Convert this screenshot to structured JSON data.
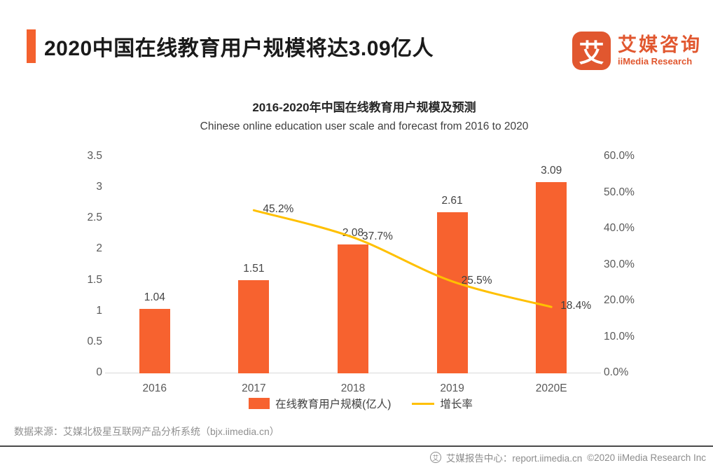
{
  "header": {
    "title": "2020中国在线教育用户规模将达3.09亿人",
    "accent_color": "#F4612E",
    "logo": {
      "glyph": "艾",
      "name_cn": "艾媒咨询",
      "name_en": "iiMedia Research",
      "color": "#E1572F"
    }
  },
  "chart_data": {
    "type": "bar",
    "title": "2016-2020年中国在线教育用户规模及预测",
    "subtitle": "Chinese online education user scale and forecast from 2016 to 2020",
    "categories": [
      "2016",
      "2017",
      "2018",
      "2019",
      "2020E"
    ],
    "series": [
      {
        "name": "在线教育用户规模(亿人)",
        "type": "bar",
        "axis": "left",
        "color": "#F7622F",
        "values": [
          1.04,
          1.51,
          2.08,
          2.61,
          3.09
        ],
        "value_labels": [
          "1.04",
          "1.51",
          "2.08",
          "2.61",
          "3.09"
        ]
      },
      {
        "name": "增长率",
        "type": "line",
        "axis": "right",
        "color": "#FFC000",
        "values": [
          null,
          45.2,
          37.7,
          25.5,
          18.4
        ],
        "value_labels": [
          "",
          "45.2%",
          "37.7%",
          "25.5%",
          "18.4%"
        ]
      }
    ],
    "left_axis": {
      "min": 0,
      "max": 3.5,
      "step": 0.5,
      "ticks": [
        "0",
        "0.5",
        "1",
        "1.5",
        "2",
        "2.5",
        "3",
        "3.5"
      ]
    },
    "right_axis": {
      "min": 0,
      "max": 60,
      "step": 10,
      "ticks": [
        "0.0%",
        "10.0%",
        "20.0%",
        "30.0%",
        "40.0%",
        "50.0%",
        "60.0%"
      ]
    },
    "legend_position": "bottom",
    "grid": false
  },
  "legend": [
    {
      "label": "在线教育用户规模(亿人)",
      "swatch": "bar",
      "color": "#F7622F"
    },
    {
      "label": "增长率",
      "swatch": "line",
      "color": "#FFC000"
    }
  ],
  "source": "数据来源：艾媒北极星互联网产品分析系统（bjx.iimedia.cn）",
  "footer": {
    "icon_glyph": "艾",
    "text": "艾媒报告中心：report.iimedia.cn",
    "copyright": "©2020 iiMedia Research  Inc"
  }
}
